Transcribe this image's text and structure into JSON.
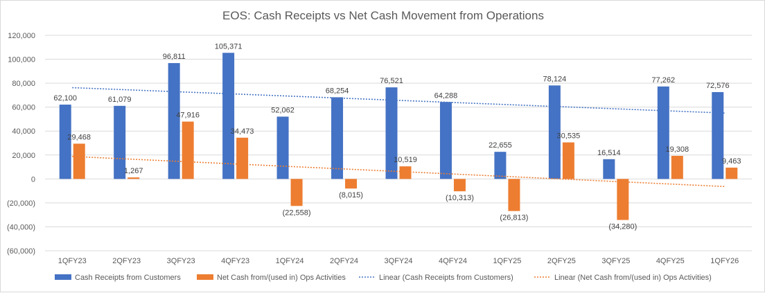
{
  "chart_data": {
    "type": "bar",
    "title": "EOS: Cash Receipts vs Net Cash Movement from Operations",
    "categories": [
      "1QFY23",
      "2QFY23",
      "3QFY23",
      "4QFY23",
      "1QFY24",
      "2QFY24",
      "3QFY24",
      "4QFY24",
      "1QFY25",
      "2QFY25",
      "3QFY25",
      "4QFY25",
      "1QFY26"
    ],
    "ylim": [
      -60000,
      120000
    ],
    "ytick_step": 20000,
    "ytick_labels": [
      "(60,000)",
      "(40,000)",
      "(20,000)",
      "0",
      "20,000",
      "40,000",
      "60,000",
      "80,000",
      "100,000",
      "120,000"
    ],
    "grid": true,
    "legend_position": "bottom",
    "series": [
      {
        "name": "Cash Receipts from Customers",
        "color": "#4472c4",
        "values": [
          62100,
          61079,
          96811,
          105371,
          52062,
          68254,
          76521,
          64288,
          22655,
          78124,
          16514,
          77262,
          72576
        ],
        "labels": [
          "62,100",
          "61,079",
          "96,811",
          "105,371",
          "52,062",
          "68,254",
          "76,521",
          "64,288",
          "22,655",
          "78,124",
          "16,514",
          "77,262",
          "72,576"
        ]
      },
      {
        "name": "Net Cash from/(used in) Ops Activities",
        "color": "#ed7d31",
        "values": [
          29468,
          1267,
          47916,
          34473,
          -22558,
          -8015,
          10519,
          -10313,
          -26813,
          30535,
          -34280,
          19308,
          9463
        ],
        "labels": [
          "29,468",
          "1,267",
          "47,916",
          "34,473",
          "(22,558)",
          "(8,015)",
          "10,519",
          "(10,313)",
          "(26,813)",
          "30,535",
          "(34,280)",
          "19,308",
          "9,463"
        ]
      }
    ],
    "trendlines": [
      {
        "name": "Linear (Cash Receipts from Customers)",
        "color": "#4472c4"
      },
      {
        "name": "Linear (Net Cash from/(used in) Ops Activities)",
        "color": "#ed7d31"
      }
    ],
    "negative_label_color": "#ff0000"
  }
}
